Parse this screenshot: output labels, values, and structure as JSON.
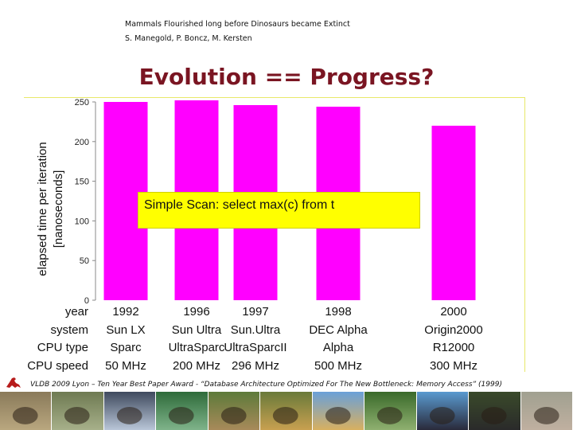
{
  "header": {
    "line1": "Mammals Flourished long before Dinosaurs became Extinct",
    "line2": "S. Manegold, P. Boncz, M. Kersten"
  },
  "slide_title": "Evolution == Progress?",
  "annotation": "Simple Scan: select max(c) from t",
  "footer": "VLDB 2009 Lyon – Ten Year Best Paper Award - “Database Architecture Optimized For The New Bottleneck: Memory Access” (1999)",
  "colors": {
    "bar": "#ff00ff",
    "title": "#7a1522",
    "annotation_bg": "#ffff00"
  },
  "chart_data": {
    "type": "bar",
    "ylabel": "elapsed time per iteration [nanoseconds]",
    "ylabel_lines": [
      "elapsed time per iteration",
      "[nanoseconds]"
    ],
    "ylim": [
      0,
      250
    ],
    "yticks": [
      0,
      50,
      100,
      150,
      200,
      250
    ],
    "grid": false,
    "values": [
      250,
      252,
      246,
      244,
      220
    ],
    "table": {
      "rows": [
        {
          "label": "year",
          "values": [
            "1992",
            "1996",
            "1997",
            "1998",
            "2000"
          ]
        },
        {
          "label": "system",
          "values": [
            "Sun LX",
            "Sun Ultra",
            "Sun.Ultra",
            "DEC Alpha",
            "Origin2000"
          ]
        },
        {
          "label": "CPU type",
          "values": [
            "Sparc",
            "UltraSparc",
            "UltraSparcII",
            "Alpha",
            "R12000"
          ]
        },
        {
          "label": "CPU speed",
          "values": [
            "50 MHz",
            "200 MHz",
            "296 MHz",
            "500 MHz",
            "300 MHz"
          ]
        }
      ]
    }
  },
  "animals": [
    "dinosaur",
    "wolf",
    "mammoth",
    "peacock",
    "horse",
    "leopard",
    "giraffe",
    "bird",
    "whale",
    "gorilla",
    "human"
  ]
}
